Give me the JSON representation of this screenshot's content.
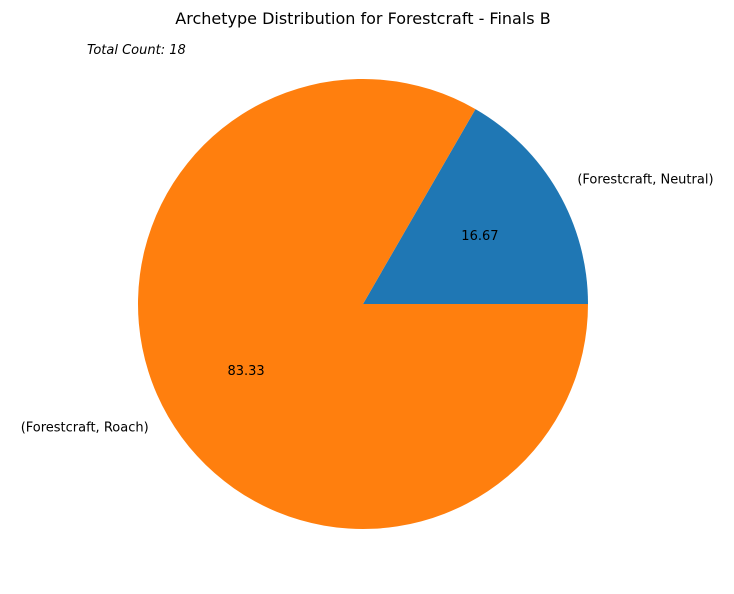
{
  "chart_data": {
    "type": "pie",
    "title": "Archetype Distribution for Forestcraft - Finals B",
    "annotation": "Total Count: 18",
    "slices": [
      {
        "label": "(Forestcraft, Neutral)",
        "value": 16.67,
        "pct_label": "16.67",
        "color": "#1f77b4"
      },
      {
        "label": "(Forestcraft, Roach)",
        "value": 83.33,
        "pct_label": "83.33",
        "color": "#ff7f0e"
      }
    ],
    "start_angle_deg": 0,
    "direction": "counterclockwise",
    "legend": "none"
  }
}
